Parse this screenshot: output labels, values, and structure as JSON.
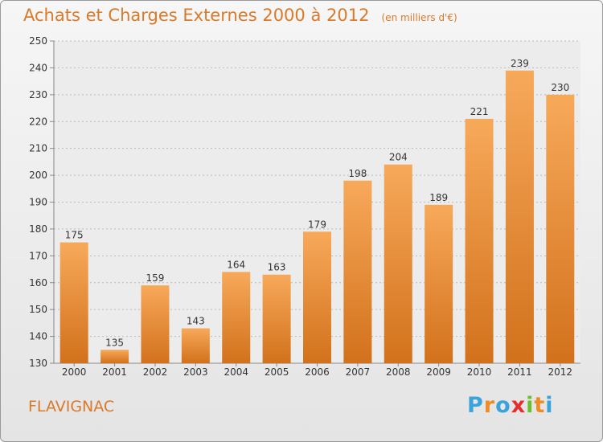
{
  "header": {
    "title": "Achats et Charges Externes 2000 à 2012",
    "unit": "(en milliers d'€)"
  },
  "footer": {
    "commune": "FLAVIGNAC",
    "brand": [
      "P",
      "r",
      "o",
      "x",
      "i",
      "t",
      "i"
    ],
    "brand_colors": [
      "#3aa3dc",
      "#f08a24",
      "#3aa3dc",
      "#e62e2e",
      "#6cbf2c",
      "#f08a24",
      "#3aa3dc"
    ]
  },
  "colors": {
    "bar_top": "#f7a95a",
    "bar_bottom": "#d2711c",
    "accent": "#d97a2a"
  },
  "chart_data": {
    "type": "bar",
    "categories": [
      "2000",
      "2001",
      "2002",
      "2003",
      "2004",
      "2005",
      "2006",
      "2007",
      "2008",
      "2009",
      "2010",
      "2011",
      "2012"
    ],
    "values": [
      175,
      135,
      159,
      143,
      164,
      163,
      179,
      198,
      204,
      189,
      221,
      239,
      230
    ],
    "title": "Achats et Charges Externes 2000 à 2012",
    "xlabel": "",
    "ylabel": "",
    "ylim": [
      130,
      250
    ],
    "yticks": [
      130,
      140,
      150,
      160,
      170,
      180,
      190,
      200,
      210,
      220,
      230,
      240,
      250
    ],
    "grid": true
  }
}
